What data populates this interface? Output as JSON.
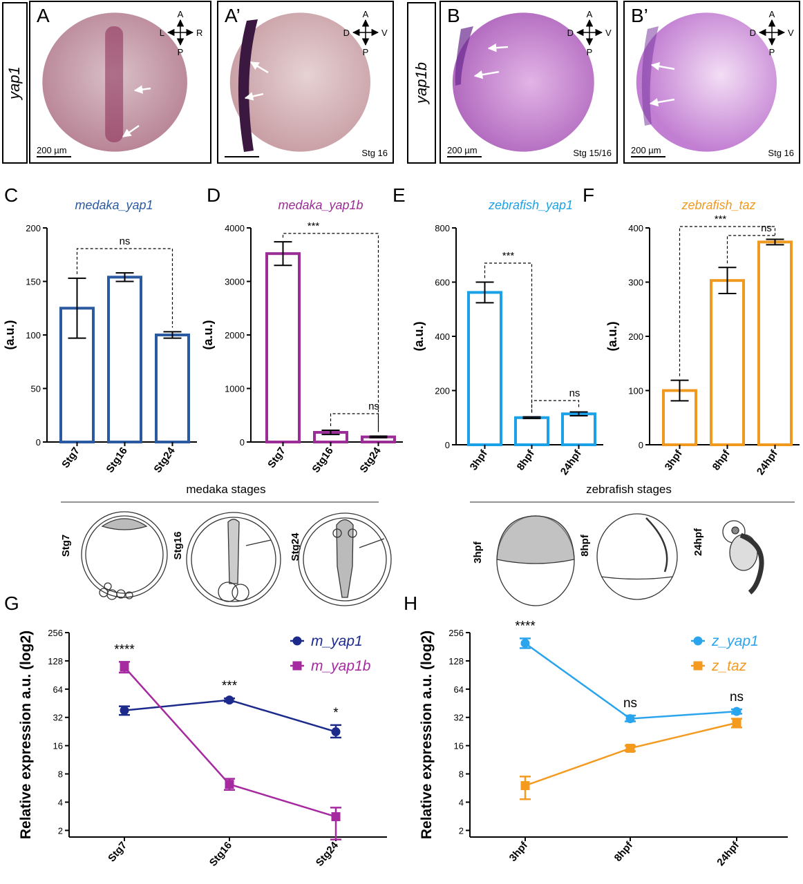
{
  "micrographs": {
    "row_labels": [
      "yap1",
      "yap1b"
    ],
    "panels": [
      {
        "letter": "A",
        "axis": [
          "A",
          "P",
          "L",
          "R"
        ],
        "stage": "",
        "scale_bar": "200 µm",
        "tint": "#c9a3b0"
      },
      {
        "letter": "A’",
        "axis": [
          "A",
          "P",
          "D",
          "V"
        ],
        "stage": "Stg 16",
        "scale_bar": "",
        "tint": "#d8bcc0"
      },
      {
        "letter": "B",
        "axis": [
          "A",
          "P",
          "D",
          "V"
        ],
        "stage": "Stg 15/16",
        "scale_bar": "200 µm",
        "tint": "#c88fd0"
      },
      {
        "letter": "B’",
        "axis": [
          "A",
          "P",
          "D",
          "V"
        ],
        "stage": "Stg 16",
        "scale_bar": "200 µm",
        "tint": "#d6a5e0"
      }
    ]
  },
  "chart_data": [
    {
      "panel": "C",
      "type": "bar",
      "title": "medaka_yap1",
      "color": "#2a5aa0",
      "ylabel": "(a.u.)",
      "categories": [
        "Stg7",
        "Stg16",
        "Stg24"
      ],
      "values": [
        125,
        154,
        100
      ],
      "errors": [
        28,
        4,
        3
      ],
      "ylim": [
        0,
        200
      ],
      "yticks": [
        0,
        50,
        100,
        150,
        200
      ],
      "comparisons": [
        {
          "from": 0,
          "to": 2,
          "label": "ns"
        }
      ]
    },
    {
      "panel": "D",
      "type": "bar",
      "title": "medaka_yap1b",
      "color": "#9b2d96",
      "ylabel": "(a.u.)",
      "categories": [
        "Stg7",
        "Stg16",
        "Stg24"
      ],
      "values": [
        3520,
        180,
        95
      ],
      "errors": [
        220,
        40,
        15
      ],
      "ylim": [
        0,
        4000
      ],
      "yticks": [
        0,
        1000,
        2000,
        3000,
        4000
      ],
      "comparisons": [
        {
          "from": 0,
          "to": 2,
          "label": "***"
        },
        {
          "from": 1,
          "to": 2,
          "label": "ns"
        }
      ]
    },
    {
      "panel": "E",
      "type": "bar",
      "title": "zebrafish_yap1",
      "color": "#1ba1e6",
      "ylabel": "(a.u.)",
      "categories": [
        "3hpf",
        "8hpf",
        "24hpf"
      ],
      "values": [
        562,
        100,
        114
      ],
      "errors": [
        38,
        3,
        7
      ],
      "ylim": [
        0,
        800
      ],
      "yticks": [
        0,
        200,
        400,
        600,
        800
      ],
      "comparisons": [
        {
          "from": 0,
          "to": 1,
          "label": "***"
        },
        {
          "from": 1,
          "to": 2,
          "label": "ns"
        }
      ]
    },
    {
      "panel": "F",
      "type": "bar",
      "title": "zebrafish_taz",
      "color": "#f0991f",
      "ylabel": "(a.u.)",
      "categories": [
        "3hpf",
        "8hpf",
        "24hpf"
      ],
      "values": [
        100,
        303,
        374
      ],
      "errors": [
        19,
        24,
        5
      ],
      "ylim": [
        0,
        400
      ],
      "yticks": [
        0,
        100,
        200,
        300,
        400
      ],
      "comparisons": [
        {
          "from": 0,
          "to": 2,
          "label": "***"
        },
        {
          "from": 1,
          "to": 2,
          "label": "ns"
        }
      ]
    },
    {
      "panel": "G",
      "type": "line",
      "ylabel": "Relative expression a.u. (log2)",
      "categories": [
        "Stg7",
        "Stg16",
        "Stg24"
      ],
      "yscale": "log2",
      "ylim": [
        1.7,
        256
      ],
      "yticks": [
        2,
        4,
        8,
        16,
        32,
        64,
        128,
        256
      ],
      "series": [
        {
          "name": "m_yap1",
          "color": "#1c2a8c",
          "marker": "circle",
          "values": [
            38,
            49,
            22.5
          ],
          "errors": [
            [
              34,
              42
            ],
            [
              47,
              51
            ],
            [
              19.5,
              26.5
            ]
          ]
        },
        {
          "name": "m_yap1b",
          "color": "#a52aa0",
          "marker": "square",
          "values": [
            110,
            6.2,
            2.8
          ],
          "errors": [
            [
              96,
              125
            ],
            [
              5.4,
              7.1
            ],
            [
              1.6,
              3.5
            ]
          ]
        }
      ],
      "significance": [
        "****",
        "***",
        "*"
      ]
    },
    {
      "panel": "H",
      "type": "line",
      "ylabel": "Relative expression a.u. (log2)",
      "categories": [
        "3hpf",
        "8hpf",
        "24hpf"
      ],
      "yscale": "log2",
      "ylim": [
        1.7,
        256
      ],
      "yticks": [
        2,
        4,
        8,
        16,
        32,
        64,
        128,
        256
      ],
      "series": [
        {
          "name": "z_yap1",
          "color": "#2aa4ec",
          "marker": "circle",
          "values": [
            197,
            31,
            37
          ],
          "errors": [
            [
              175,
              222
            ],
            [
              29,
              33.5
            ],
            [
              35,
              39
            ]
          ]
        },
        {
          "name": "z_taz",
          "color": "#f39a1f",
          "marker": "square",
          "values": [
            6,
            15,
            28
          ],
          "errors": [
            [
              4.3,
              7.5
            ],
            [
              14,
              16
            ],
            [
              25,
              31
            ]
          ]
        }
      ],
      "significance": [
        "****",
        "ns",
        "ns"
      ]
    }
  ],
  "stages": {
    "medaka": {
      "heading": "medaka stages",
      "labels": [
        "Stg7",
        "Stg16",
        "Stg24"
      ]
    },
    "zebrafish": {
      "heading": "zebrafish stages",
      "labels": [
        "3hpf",
        "8hpf",
        "24hpf"
      ]
    }
  }
}
